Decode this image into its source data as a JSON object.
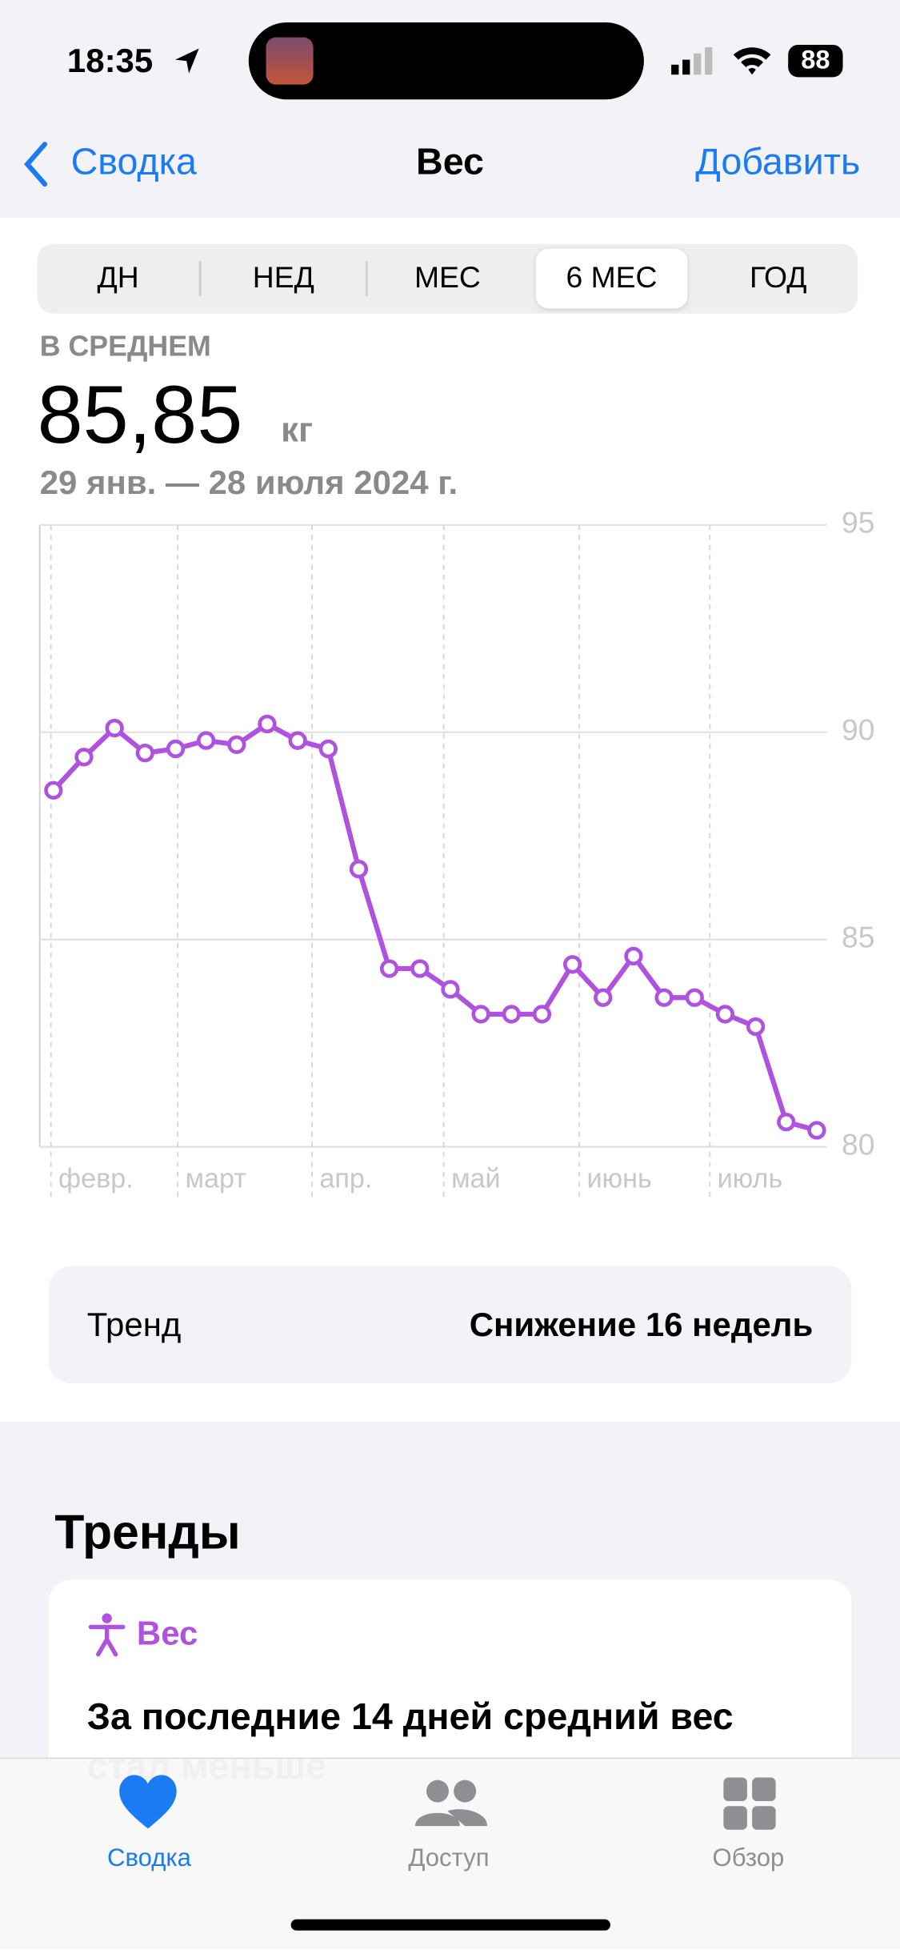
{
  "status_bar": {
    "time": "18:35",
    "battery": "88"
  },
  "nav": {
    "back": "Сводка",
    "title": "Вес",
    "action": "Добавить"
  },
  "segments": [
    "ДН",
    "НЕД",
    "МЕС",
    "6 МЕС",
    "ГОД"
  ],
  "summary": {
    "label": "В СРЕДНЕМ",
    "value": "85,85",
    "unit": "кг",
    "range": "29 янв. — 28 июля 2024 г."
  },
  "chart_data": {
    "type": "line",
    "color": "#af52de",
    "grid": true,
    "x_labels": [
      "февр.",
      "март",
      "апр.",
      "май",
      "июнь",
      "июль"
    ],
    "categories": [
      null,
      null,
      null,
      null,
      null,
      null,
      null,
      null,
      null,
      null,
      null,
      null,
      null,
      null,
      null,
      null,
      null,
      null,
      null,
      null,
      null,
      null,
      null,
      null,
      null,
      null
    ],
    "values": [
      88.6,
      89.4,
      90.1,
      89.5,
      89.6,
      89.8,
      89.7,
      90.2,
      89.8,
      89.6,
      86.7,
      84.3,
      84.3,
      83.8,
      83.2,
      83.2,
      83.2,
      84.4,
      83.6,
      84.6,
      83.6,
      83.6,
      83.2,
      82.9,
      80.6,
      80.4
    ],
    "ylim": [
      80,
      95
    ],
    "yticks": [
      80,
      85,
      90,
      95
    ]
  },
  "trend_row": {
    "label": "Тренд",
    "value": "Снижение 16 недель"
  },
  "trends": {
    "heading": "Тренды",
    "card_title": "Вес",
    "card_text": "За последние 14 дней средний вес",
    "card_text_2": "стал меньше"
  },
  "tab_bar": [
    "Сводка",
    "Доступ",
    "Обзор"
  ]
}
